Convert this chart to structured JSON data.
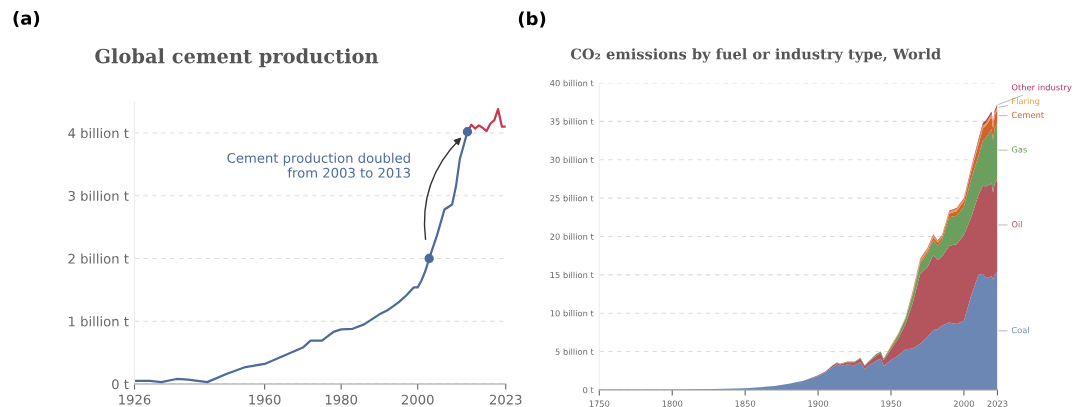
{
  "chart_data": [
    {
      "type": "line",
      "title": "Global cement production",
      "xlim": [
        1926,
        2023
      ],
      "ylim": [
        0,
        4.5
      ],
      "xticks": [
        1926,
        1960,
        1980,
        2000,
        2023
      ],
      "yticks": [
        {
          "value": 0,
          "label": "0 t"
        },
        {
          "value": 1,
          "label": "1 billion t"
        },
        {
          "value": 2,
          "label": "2 billion t"
        },
        {
          "value": 3,
          "label": "3 billion t"
        },
        {
          "value": 4,
          "label": "4 billion t"
        }
      ],
      "grid": "y",
      "series": [
        {
          "color": "#4c6a9c",
          "x": [
            1926,
            1930,
            1933,
            1937,
            1940,
            1945,
            1950,
            1955,
            1960,
            1965,
            1970,
            1972,
            1975,
            1978,
            1980,
            1983,
            1986,
            1990,
            1992,
            1995,
            1997,
            1999,
            2000,
            2001,
            2002,
            2003,
            2005,
            2007,
            2008,
            2009,
            2010,
            2011,
            2012,
            2013
          ],
          "values": [
            0.05,
            0.05,
            0.03,
            0.08,
            0.07,
            0.03,
            0.16,
            0.27,
            0.32,
            0.45,
            0.58,
            0.69,
            0.69,
            0.83,
            0.87,
            0.88,
            0.95,
            1.11,
            1.17,
            1.3,
            1.41,
            1.54,
            1.54,
            1.65,
            1.8,
            2.0,
            2.36,
            2.78,
            2.82,
            2.86,
            3.15,
            3.58,
            3.8,
            4.02
          ]
        },
        {
          "color": "#c8384f",
          "x": [
            2013,
            2014,
            2015,
            2016,
            2017,
            2018,
            2019,
            2020,
            2021,
            2022,
            2023
          ],
          "values": [
            4.02,
            4.13,
            4.07,
            4.12,
            4.08,
            4.03,
            4.15,
            4.2,
            4.38,
            4.1,
            4.1
          ]
        },
        {
          "type": "scatter",
          "color": "#4c6a9c",
          "marker": "circle",
          "x": [
            2003,
            2013
          ],
          "values": [
            2.0,
            4.02
          ]
        }
      ],
      "annotations": [
        "(a)",
        "Cement production doubled\nfrom 2003 to 2013"
      ]
    },
    {
      "type": "area",
      "stacked": true,
      "title": "CO₂ emissions by fuel or industry type, World",
      "xlim": [
        1750,
        2023
      ],
      "ylim": [
        0,
        40
      ],
      "xticks": [
        1750,
        1800,
        1850,
        1900,
        1950,
        2000,
        2023
      ],
      "yticks": [
        {
          "value": 0,
          "label": "0 t"
        },
        {
          "value": 5,
          "label": "5 billion t"
        },
        {
          "value": 10,
          "label": "10 billion t"
        },
        {
          "value": 15,
          "label": "15 billion t"
        },
        {
          "value": 20,
          "label": "20 billion t"
        },
        {
          "value": 25,
          "label": "25 billion t"
        },
        {
          "value": 30,
          "label": "30 billion t"
        },
        {
          "value": 35,
          "label": "35 billion t"
        },
        {
          "value": 40,
          "label": "40 billion t"
        }
      ],
      "grid": "y",
      "x": [
        1750,
        1800,
        1850,
        1870,
        1880,
        1890,
        1900,
        1905,
        1910,
        1913,
        1915,
        1920,
        1925,
        1929,
        1932,
        1935,
        1940,
        1943,
        1945,
        1950,
        1955,
        1960,
        1965,
        1970,
        1975,
        1979,
        1982,
        1985,
        1990,
        1995,
        2000,
        2005,
        2010,
        2013,
        2015,
        2019,
        2020,
        2021,
        2023
      ],
      "series": [
        {
          "name": "Coal",
          "color": "#6d87b5",
          "values": [
            0,
            0,
            0.2,
            0.5,
            0.8,
            1.2,
            1.8,
            2.3,
            3.0,
            3.3,
            3.1,
            3.3,
            3.2,
            3.6,
            2.7,
            3.2,
            3.8,
            4.1,
            3.1,
            3.9,
            4.5,
            5.3,
            5.4,
            6.0,
            6.9,
            7.8,
            7.9,
            8.4,
            8.8,
            8.6,
            9.0,
            12.3,
            15.0,
            15.1,
            14.6,
            14.8,
            14.4,
            15.0,
            15.4
          ]
        },
        {
          "name": "Oil",
          "color": "#b4555d",
          "values": [
            0,
            0,
            0,
            0,
            0,
            0,
            0.1,
            0.1,
            0.2,
            0.2,
            0.2,
            0.3,
            0.4,
            0.5,
            0.4,
            0.5,
            0.7,
            0.7,
            0.8,
            1.4,
            2.2,
            3.3,
            6.0,
            9.1,
            9.1,
            9.8,
            9.0,
            9.0,
            10.0,
            10.4,
            11.2,
            10.2,
            10.4,
            11.5,
            11.9,
            12.1,
            11.3,
            11.8,
            12.2
          ]
        },
        {
          "name": "Gas",
          "color": "#6c9e5e",
          "values": [
            0,
            0,
            0,
            0,
            0,
            0,
            0,
            0,
            0,
            0.1,
            0.1,
            0.1,
            0.1,
            0.1,
            0.1,
            0.1,
            0.2,
            0.2,
            0.2,
            0.3,
            0.5,
            0.7,
            1.1,
            1.4,
            1.8,
            1.9,
            1.9,
            2.1,
            3.7,
            3.7,
            3.7,
            5.0,
            5.1,
            5.9,
            6.3,
            7.1,
            6.8,
            7.2,
            7.3
          ]
        },
        {
          "name": "Cement",
          "color": "#d4622b",
          "values": [
            0,
            0,
            0,
            0,
            0,
            0,
            0,
            0,
            0,
            0,
            0,
            0,
            0,
            0,
            0,
            0,
            0,
            0,
            0,
            0.1,
            0.1,
            0.1,
            0.2,
            0.2,
            0.3,
            0.4,
            0.4,
            0.4,
            0.5,
            0.6,
            0.7,
            1.0,
            1.5,
            1.6,
            1.6,
            1.6,
            1.6,
            1.7,
            1.7
          ]
        },
        {
          "name": "Flaring",
          "color": "#e0a040",
          "values": [
            0,
            0,
            0,
            0,
            0,
            0,
            0,
            0,
            0,
            0,
            0,
            0,
            0,
            0,
            0,
            0,
            0,
            0,
            0,
            0.1,
            0.1,
            0.1,
            0.2,
            0.3,
            0.3,
            0.3,
            0.2,
            0.2,
            0.3,
            0.3,
            0.3,
            0.3,
            0.4,
            0.4,
            0.4,
            0.4,
            0.4,
            0.4,
            0.4
          ]
        },
        {
          "name": "Other industry",
          "color": "#b0306b",
          "values": [
            0,
            0,
            0,
            0,
            0,
            0,
            0,
            0,
            0,
            0,
            0,
            0,
            0,
            0,
            0,
            0,
            0,
            0,
            0,
            0,
            0,
            0,
            0.1,
            0.1,
            0.1,
            0.1,
            0.1,
            0.1,
            0.1,
            0.1,
            0.1,
            0.2,
            0.3,
            0.3,
            0.3,
            0.3,
            0.3,
            0.3,
            0.3
          ]
        }
      ],
      "annotations": [
        "(b)"
      ]
    }
  ]
}
